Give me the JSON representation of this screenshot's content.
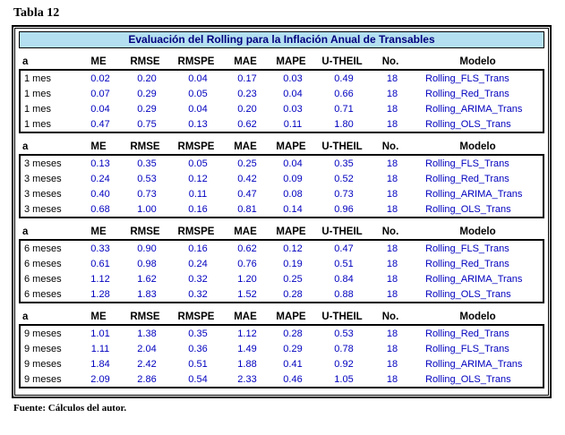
{
  "page": {
    "title": "Tabla 12",
    "footer": "Fuente: Cálculos del autor."
  },
  "colors": {
    "banner_bg": "#b3dff0",
    "banner_text": "#00007d",
    "value_text": "#0000bf"
  },
  "table": {
    "banner": "Evaluación del Rolling para la Inflación Anual de Transables",
    "columns": [
      "a",
      "ME",
      "RMSE",
      "RMSPE",
      "MAE",
      "MAPE",
      "U-THEIL",
      "No.",
      "Modelo"
    ],
    "sections": [
      {
        "horizon": "1 mes",
        "rows": [
          [
            "1 mes",
            "0.02",
            "0.20",
            "0.04",
            "0.17",
            "0.03",
            "0.49",
            "18",
            "Rolling_FLS_Trans"
          ],
          [
            "1 mes",
            "0.07",
            "0.29",
            "0.05",
            "0.23",
            "0.04",
            "0.66",
            "18",
            "Rolling_Red_Trans"
          ],
          [
            "1 mes",
            "0.04",
            "0.29",
            "0.04",
            "0.20",
            "0.03",
            "0.71",
            "18",
            "Rolling_ARIMA_Trans"
          ],
          [
            "1 mes",
            "0.47",
            "0.75",
            "0.13",
            "0.62",
            "0.11",
            "1.80",
            "18",
            "Rolling_OLS_Trans"
          ]
        ]
      },
      {
        "horizon": "3 meses",
        "rows": [
          [
            "3 meses",
            "0.13",
            "0.35",
            "0.05",
            "0.25",
            "0.04",
            "0.35",
            "18",
            "Rolling_FLS_Trans"
          ],
          [
            "3 meses",
            "0.24",
            "0.53",
            "0.12",
            "0.42",
            "0.09",
            "0.52",
            "18",
            "Rolling_Red_Trans"
          ],
          [
            "3 meses",
            "0.40",
            "0.73",
            "0.11",
            "0.47",
            "0.08",
            "0.73",
            "18",
            "Rolling_ARIMA_Trans"
          ],
          [
            "3 meses",
            "0.68",
            "1.00",
            "0.16",
            "0.81",
            "0.14",
            "0.96",
            "18",
            "Rolling_OLS_Trans"
          ]
        ]
      },
      {
        "horizon": "6 meses",
        "rows": [
          [
            "6 meses",
            "0.33",
            "0.90",
            "0.16",
            "0.62",
            "0.12",
            "0.47",
            "18",
            "Rolling_FLS_Trans"
          ],
          [
            "6 meses",
            "0.61",
            "0.98",
            "0.24",
            "0.76",
            "0.19",
            "0.51",
            "18",
            "Rolling_Red_Trans"
          ],
          [
            "6 meses",
            "1.12",
            "1.62",
            "0.32",
            "1.20",
            "0.25",
            "0.84",
            "18",
            "Rolling_ARIMA_Trans"
          ],
          [
            "6 meses",
            "1.28",
            "1.83",
            "0.32",
            "1.52",
            "0.28",
            "0.88",
            "18",
            "Rolling_OLS_Trans"
          ]
        ]
      },
      {
        "horizon": "9 meses",
        "rows": [
          [
            "9 meses",
            "1.01",
            "1.38",
            "0.35",
            "1.12",
            "0.28",
            "0.53",
            "18",
            "Rolling_Red_Trans"
          ],
          [
            "9 meses",
            "1.11",
            "2.04",
            "0.36",
            "1.49",
            "0.29",
            "0.78",
            "18",
            "Rolling_FLS_Trans"
          ],
          [
            "9 meses",
            "1.84",
            "2.42",
            "0.51",
            "1.88",
            "0.41",
            "0.92",
            "18",
            "Rolling_ARIMA_Trans"
          ],
          [
            "9 meses",
            "2.09",
            "2.86",
            "0.54",
            "2.33",
            "0.46",
            "1.05",
            "18",
            "Rolling_OLS_Trans"
          ]
        ]
      }
    ]
  }
}
